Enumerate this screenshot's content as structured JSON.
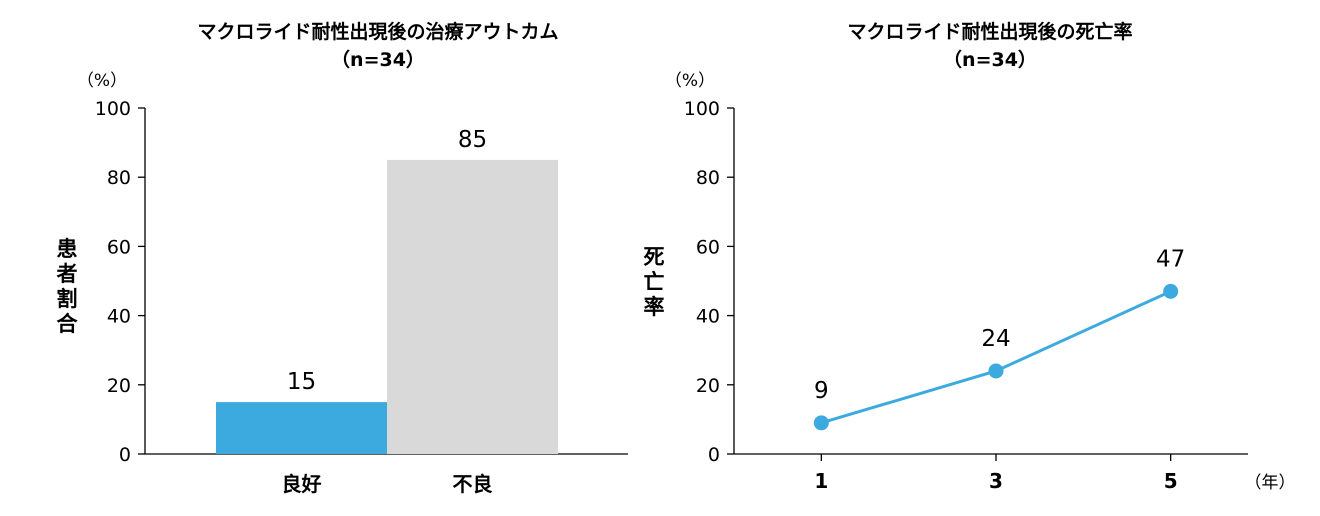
{
  "chart_data": [
    {
      "type": "bar",
      "title": "マクロライド耐性出現後の治療アウトカム",
      "subtitle": "（n=34）",
      "unit_label": "（%）",
      "ylabel_chars": [
        "患",
        "者",
        "割",
        "合"
      ],
      "ylim": [
        0,
        100
      ],
      "yticks": [
        0,
        20,
        40,
        60,
        80,
        100
      ],
      "categories": [
        "良好",
        "不良"
      ],
      "values": [
        15,
        85
      ],
      "value_labels": [
        "15",
        "85"
      ],
      "colors": [
        "#3daadf",
        "#d9d9d9"
      ],
      "grid": false
    },
    {
      "type": "line",
      "title": "マクロライド耐性出現後の死亡率",
      "subtitle": "（n=34）",
      "unit_label": "（%）",
      "ylabel_chars": [
        "死",
        "亡",
        "率"
      ],
      "ylim": [
        0,
        100
      ],
      "yticks": [
        0,
        20,
        40,
        60,
        80,
        100
      ],
      "x": [
        1,
        3,
        5
      ],
      "x_labels": [
        "1",
        "3",
        "5"
      ],
      "x_unit_label": "（年）",
      "values": [
        9,
        24,
        47
      ],
      "value_labels": [
        "9",
        "24",
        "47"
      ],
      "color": "#3daadf",
      "grid": false
    }
  ]
}
